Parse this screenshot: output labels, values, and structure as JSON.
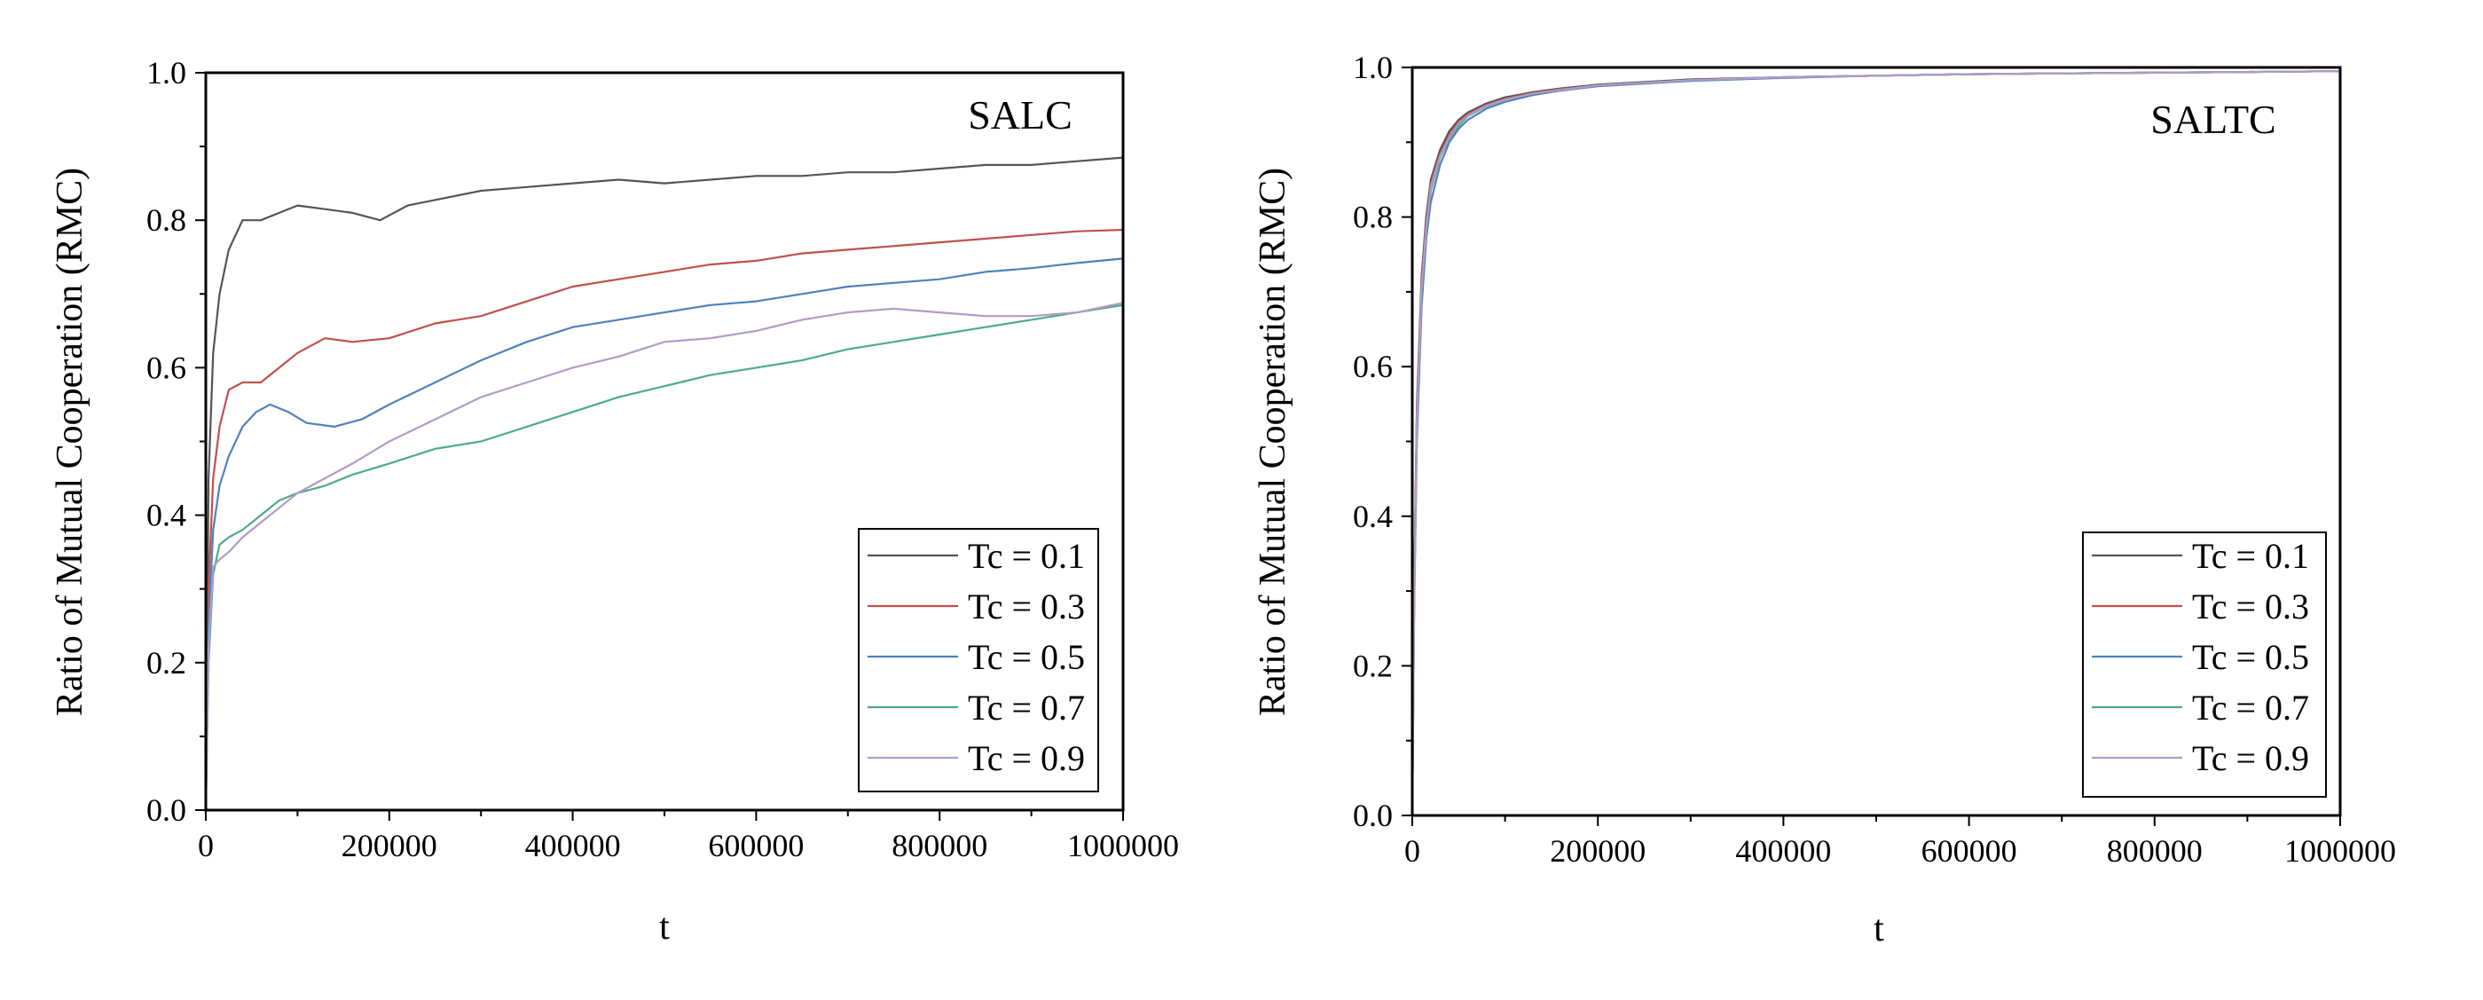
{
  "chart_data": [
    {
      "type": "line",
      "title": "",
      "panel_label": "SALC",
      "xlabel": "t",
      "ylabel": "Ratio of Mutual Cooperation (RMC)",
      "xlim": [
        0,
        1000000
      ],
      "ylim": [
        0,
        1.0
      ],
      "xticks": [
        "0",
        "200000",
        "400000",
        "600000",
        "800000",
        "1000000"
      ],
      "yticks": [
        "0.0",
        "0.2",
        "0.4",
        "0.6",
        "0.8",
        "1.0"
      ],
      "legend_position": "bottom-right",
      "grid": false,
      "series": [
        {
          "name": "Tc = 0.1",
          "color": "#555555",
          "x": [
            0,
            3000,
            8000,
            15000,
            25000,
            40000,
            60000,
            80000,
            100000,
            130000,
            160000,
            190000,
            220000,
            260000,
            300000,
            350000,
            400000,
            450000,
            500000,
            550000,
            600000,
            650000,
            700000,
            750000,
            800000,
            850000,
            900000,
            950000,
            1000000
          ],
          "y": [
            0.0,
            0.45,
            0.62,
            0.7,
            0.76,
            0.8,
            0.8,
            0.81,
            0.82,
            0.815,
            0.81,
            0.8,
            0.82,
            0.83,
            0.84,
            0.845,
            0.85,
            0.855,
            0.85,
            0.855,
            0.86,
            0.86,
            0.865,
            0.865,
            0.87,
            0.875,
            0.875,
            0.88,
            0.885
          ]
        },
        {
          "name": "Tc = 0.3",
          "color": "#c0504d",
          "x": [
            0,
            3000,
            8000,
            15000,
            25000,
            40000,
            60000,
            80000,
            100000,
            130000,
            160000,
            200000,
            250000,
            300000,
            350000,
            400000,
            450000,
            500000,
            550000,
            600000,
            650000,
            700000,
            750000,
            800000,
            850000,
            900000,
            950000,
            1000000
          ],
          "y": [
            0.0,
            0.3,
            0.45,
            0.52,
            0.57,
            0.58,
            0.58,
            0.6,
            0.62,
            0.64,
            0.635,
            0.64,
            0.66,
            0.67,
            0.69,
            0.71,
            0.72,
            0.73,
            0.74,
            0.745,
            0.755,
            0.76,
            0.765,
            0.77,
            0.775,
            0.78,
            0.785,
            0.787
          ]
        },
        {
          "name": "Tc = 0.5",
          "color": "#4f81bd",
          "x": [
            0,
            3000,
            8000,
            15000,
            25000,
            40000,
            55000,
            70000,
            90000,
            110000,
            140000,
            170000,
            200000,
            250000,
            300000,
            350000,
            400000,
            450000,
            500000,
            550000,
            600000,
            650000,
            700000,
            750000,
            800000,
            850000,
            900000,
            950000,
            1000000
          ],
          "y": [
            0.0,
            0.25,
            0.38,
            0.44,
            0.48,
            0.52,
            0.54,
            0.55,
            0.54,
            0.525,
            0.52,
            0.53,
            0.55,
            0.58,
            0.61,
            0.635,
            0.655,
            0.665,
            0.675,
            0.685,
            0.69,
            0.7,
            0.71,
            0.715,
            0.72,
            0.73,
            0.735,
            0.742,
            0.748
          ]
        },
        {
          "name": "Tc = 0.7",
          "color": "#4bab8a",
          "x": [
            0,
            3000,
            8000,
            15000,
            25000,
            40000,
            60000,
            80000,
            100000,
            130000,
            160000,
            200000,
            250000,
            300000,
            350000,
            400000,
            450000,
            500000,
            550000,
            600000,
            650000,
            700000,
            750000,
            800000,
            850000,
            900000,
            950000,
            1000000
          ],
          "y": [
            0.0,
            0.2,
            0.32,
            0.36,
            0.37,
            0.38,
            0.4,
            0.42,
            0.43,
            0.44,
            0.455,
            0.47,
            0.49,
            0.5,
            0.52,
            0.54,
            0.56,
            0.575,
            0.59,
            0.6,
            0.61,
            0.625,
            0.635,
            0.645,
            0.655,
            0.665,
            0.675,
            0.685
          ]
        },
        {
          "name": "Tc = 0.9",
          "color": "#b39ac6",
          "x": [
            0,
            3000,
            8000,
            15000,
            25000,
            40000,
            60000,
            80000,
            100000,
            130000,
            160000,
            200000,
            250000,
            300000,
            350000,
            400000,
            450000,
            500000,
            550000,
            600000,
            650000,
            700000,
            750000,
            800000,
            850000,
            900000,
            950000,
            1000000
          ],
          "y": [
            0.0,
            0.22,
            0.33,
            0.34,
            0.35,
            0.37,
            0.39,
            0.41,
            0.43,
            0.45,
            0.47,
            0.5,
            0.53,
            0.56,
            0.58,
            0.6,
            0.615,
            0.635,
            0.64,
            0.65,
            0.665,
            0.675,
            0.68,
            0.675,
            0.67,
            0.67,
            0.675,
            0.688
          ]
        }
      ]
    },
    {
      "type": "line",
      "title": "",
      "panel_label": "SALTC",
      "xlabel": "t",
      "ylabel": "Ratio of Mutual Cooperation (RMC)",
      "xlim": [
        0,
        1000000
      ],
      "ylim": [
        0,
        1.0
      ],
      "xticks": [
        "0",
        "200000",
        "400000",
        "600000",
        "800000",
        "1000000"
      ],
      "yticks": [
        "0.0",
        "0.2",
        "0.4",
        "0.6",
        "0.8",
        "1.0"
      ],
      "legend_position": "bottom-right",
      "grid": false,
      "series": [
        {
          "name": "Tc = 0.1",
          "color": "#555555",
          "x": [
            0,
            2000,
            5000,
            10000,
            15000,
            20000,
            30000,
            40000,
            50000,
            60000,
            80000,
            100000,
            130000,
            160000,
            200000,
            300000,
            400000,
            500000,
            600000,
            700000,
            800000,
            900000,
            1000000
          ],
          "y": [
            0.0,
            0.3,
            0.55,
            0.72,
            0.8,
            0.85,
            0.89,
            0.915,
            0.93,
            0.94,
            0.952,
            0.96,
            0.967,
            0.972,
            0.977,
            0.984,
            0.987,
            0.989,
            0.991,
            0.992,
            0.993,
            0.994,
            0.995
          ]
        },
        {
          "name": "Tc = 0.3",
          "color": "#c0504d",
          "x": [
            0,
            2000,
            5000,
            10000,
            15000,
            20000,
            30000,
            40000,
            50000,
            60000,
            80000,
            100000,
            130000,
            160000,
            200000,
            300000,
            400000,
            500000,
            600000,
            700000,
            800000,
            900000,
            1000000
          ],
          "y": [
            0.0,
            0.29,
            0.54,
            0.71,
            0.79,
            0.845,
            0.885,
            0.91,
            0.927,
            0.938,
            0.95,
            0.958,
            0.966,
            0.971,
            0.976,
            0.983,
            0.987,
            0.989,
            0.991,
            0.992,
            0.993,
            0.994,
            0.995
          ]
        },
        {
          "name": "Tc = 0.5",
          "color": "#4f81bd",
          "x": [
            0,
            2000,
            5000,
            10000,
            15000,
            20000,
            30000,
            40000,
            50000,
            60000,
            80000,
            100000,
            130000,
            160000,
            200000,
            300000,
            400000,
            500000,
            600000,
            700000,
            800000,
            900000,
            1000000
          ],
          "y": [
            0.0,
            0.27,
            0.5,
            0.68,
            0.77,
            0.82,
            0.87,
            0.9,
            0.918,
            0.93,
            0.945,
            0.954,
            0.963,
            0.969,
            0.975,
            0.982,
            0.986,
            0.989,
            0.991,
            0.992,
            0.993,
            0.994,
            0.995
          ]
        },
        {
          "name": "Tc = 0.7",
          "color": "#4bab8a",
          "x": [
            0,
            2000,
            5000,
            10000,
            15000,
            20000,
            30000,
            40000,
            50000,
            60000,
            80000,
            100000,
            130000,
            160000,
            200000,
            300000,
            400000,
            500000,
            600000,
            700000,
            800000,
            900000,
            1000000
          ],
          "y": [
            0.0,
            0.28,
            0.52,
            0.7,
            0.78,
            0.835,
            0.88,
            0.905,
            0.922,
            0.935,
            0.948,
            0.957,
            0.965,
            0.97,
            0.976,
            0.983,
            0.987,
            0.989,
            0.991,
            0.992,
            0.993,
            0.994,
            0.995
          ]
        },
        {
          "name": "Tc = 0.9",
          "color": "#b39ac6",
          "x": [
            0,
            2000,
            5000,
            10000,
            15000,
            20000,
            30000,
            40000,
            50000,
            60000,
            80000,
            100000,
            130000,
            160000,
            200000,
            300000,
            400000,
            500000,
            600000,
            700000,
            800000,
            900000,
            1000000
          ],
          "y": [
            0.0,
            0.28,
            0.53,
            0.705,
            0.785,
            0.84,
            0.882,
            0.907,
            0.925,
            0.936,
            0.949,
            0.957,
            0.965,
            0.97,
            0.976,
            0.983,
            0.987,
            0.989,
            0.991,
            0.992,
            0.993,
            0.994,
            0.995
          ]
        }
      ]
    }
  ]
}
